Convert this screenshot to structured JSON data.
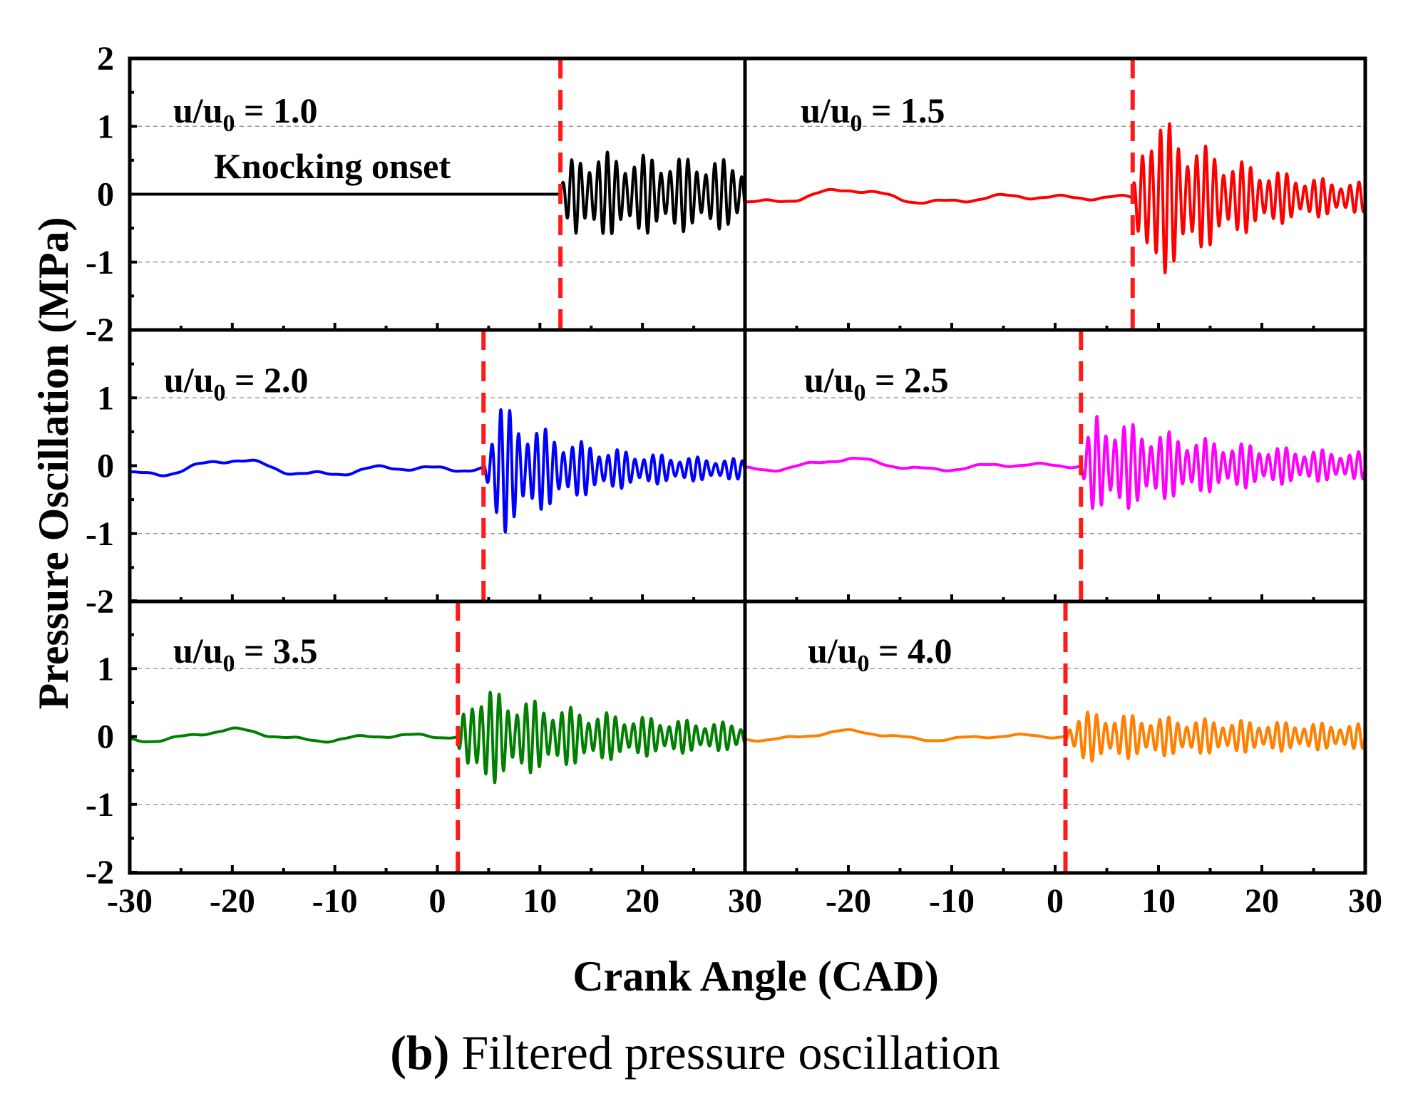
{
  "chart_data": {
    "type": "line",
    "xlabel": "Crank Angle (CAD)",
    "ylabel": "Pressure Oscillation (MPa)",
    "caption_bold": "(b)",
    "caption_rest": " Filtered pressure oscillation",
    "annotation": "Knocking onset",
    "xlim": [
      -30,
      30
    ],
    "ylim": [
      -2,
      2
    ],
    "xticks": [
      "-30",
      "-20",
      "-10",
      "0",
      "10",
      "20",
      "30"
    ],
    "yticks": [
      "2",
      "1",
      "0",
      "-1",
      "-2"
    ],
    "grid_y": [
      1,
      0,
      -1
    ],
    "onset_line_color": "#ff1a1a",
    "panels": [
      {
        "label_main": "u/u",
        "label_sub": "0",
        "label_value": " = 1.0",
        "color": "#000000",
        "knock_onset": 12.0,
        "pre_amp": 0.0,
        "post_amp": 0.55,
        "decay": 0.02,
        "smooth_offset": 0.0
      },
      {
        "label_main": "u/u",
        "label_sub": "0",
        "label_value": " = 1.5",
        "color": "#ff0000",
        "knock_onset": 7.5,
        "pre_amp": 0.12,
        "post_amp": 1.5,
        "decay": 0.12,
        "smooth_offset": -0.05
      },
      {
        "label_main": "u/u",
        "label_sub": "0",
        "label_value": " = 2.0",
        "color": "#0000ff",
        "knock_onset": 4.5,
        "pre_amp": 0.14,
        "post_amp": 1.1,
        "decay": 0.14,
        "smooth_offset": -0.05
      },
      {
        "label_main": "u/u",
        "label_sub": "0",
        "label_value": " = 2.5",
        "color": "#ff00ff",
        "knock_onset": 2.5,
        "pre_amp": 0.1,
        "post_amp": 0.75,
        "decay": 0.08,
        "smooth_offset": 0.0
      },
      {
        "label_main": "u/u",
        "label_sub": "0",
        "label_value": " = 3.5",
        "color": "#007f00",
        "knock_onset": 2.0,
        "pre_amp": 0.1,
        "post_amp": 0.75,
        "decay": 0.08,
        "smooth_offset": 0.0
      },
      {
        "label_main": "u/u",
        "label_sub": "0",
        "label_value": " = 4.0",
        "color": "#ff8000",
        "knock_onset": 1.0,
        "pre_amp": 0.08,
        "post_amp": 0.28,
        "decay": 0.05,
        "smooth_offset": 0.0
      }
    ]
  }
}
